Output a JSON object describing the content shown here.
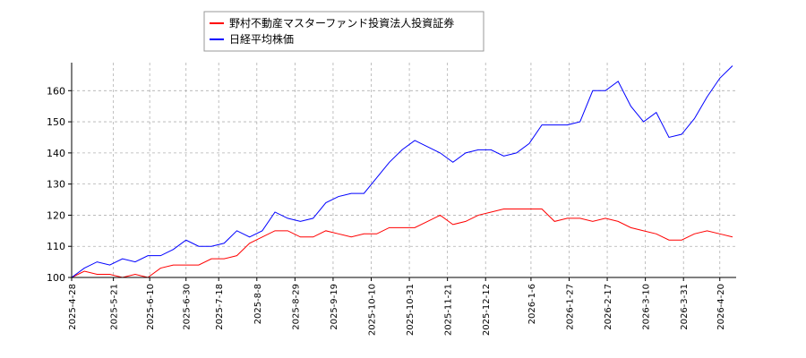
{
  "chart_data": {
    "type": "line",
    "x": [
      "2025-04-28",
      "2025-05-05",
      "2025-05-12",
      "2025-05-19",
      "2025-05-26",
      "2025-06-02",
      "2025-06-09",
      "2025-06-16",
      "2025-06-23",
      "2025-06-30",
      "2025-07-07",
      "2025-07-14",
      "2025-07-21",
      "2025-07-28",
      "2025-08-04",
      "2025-08-11",
      "2025-08-18",
      "2025-08-25",
      "2025-09-01",
      "2025-09-08",
      "2025-09-15",
      "2025-09-22",
      "2025-09-29",
      "2025-10-06",
      "2025-10-13",
      "2025-10-20",
      "2025-10-27",
      "2025-11-03",
      "2025-11-10",
      "2025-11-17",
      "2025-11-24",
      "2025-12-01",
      "2025-12-08",
      "2025-12-15",
      "2025-12-22",
      "2025-12-29",
      "2026-01-05",
      "2026-01-12",
      "2026-01-19",
      "2026-01-26",
      "2026-02-02",
      "2026-02-09",
      "2026-02-16",
      "2026-02-23",
      "2026-03-02",
      "2026-03-09",
      "2026-03-16",
      "2026-03-23",
      "2026-03-30",
      "2026-04-06",
      "2026-04-13",
      "2026-04-20",
      "2026-04-27"
    ],
    "series": [
      {
        "name": "野村不動産マスターファンド投資法人投資証券",
        "color": "#ff0000",
        "values": [
          100,
          102,
          101,
          101,
          100,
          101,
          100,
          103,
          104,
          104,
          104,
          106,
          106,
          107,
          111,
          113,
          115,
          115,
          113,
          113,
          115,
          114,
          113,
          114,
          114,
          116,
          116,
          116,
          118,
          120,
          117,
          118,
          120,
          121,
          122,
          122,
          122,
          122,
          118,
          119,
          119,
          118,
          119,
          118,
          116,
          115,
          114,
          112,
          112,
          114,
          115,
          114,
          113
        ]
      },
      {
        "name": "日経平均株価",
        "color": "#0000ff",
        "values": [
          100,
          103,
          105,
          104,
          106,
          105,
          107,
          107,
          109,
          112,
          110,
          110,
          111,
          115,
          113,
          115,
          121,
          119,
          118,
          119,
          124,
          126,
          127,
          127,
          132,
          137,
          141,
          144,
          142,
          140,
          137,
          140,
          141,
          141,
          139,
          140,
          143,
          149,
          149,
          149,
          150,
          160,
          160,
          163,
          155,
          150,
          153,
          145,
          146,
          151,
          158,
          164,
          168
        ]
      }
    ],
    "xlim": [
      "2025-04-28",
      "2026-04-29"
    ],
    "xticks": [
      {
        "value": "2025-04-28",
        "label": "2025-4-28"
      },
      {
        "value": "2025-05-21",
        "label": "2025-5-21"
      },
      {
        "value": "2025-06-10",
        "label": "2025-6-10"
      },
      {
        "value": "2025-06-30",
        "label": "2025-6-30"
      },
      {
        "value": "2025-07-18",
        "label": "2025-7-18"
      },
      {
        "value": "2025-08-08",
        "label": "2025-8-8"
      },
      {
        "value": "2025-08-29",
        "label": "2025-8-29"
      },
      {
        "value": "2025-09-19",
        "label": "2025-9-19"
      },
      {
        "value": "2025-10-10",
        "label": "2025-10-10"
      },
      {
        "value": "2025-10-31",
        "label": "2025-10-31"
      },
      {
        "value": "2025-11-21",
        "label": "2025-11-21"
      },
      {
        "value": "2025-12-12",
        "label": "2025-12-12"
      },
      {
        "value": "2026-01-06",
        "label": "2026-1-6"
      },
      {
        "value": "2026-01-27",
        "label": "2026-1-27"
      },
      {
        "value": "2026-02-17",
        "label": "2026-2-17"
      },
      {
        "value": "2026-03-10",
        "label": "2026-3-10"
      },
      {
        "value": "2026-03-31",
        "label": "2026-3-31"
      },
      {
        "value": "2026-04-20",
        "label": "2026-4-20"
      }
    ],
    "ylim": [
      100,
      169
    ],
    "yticks": [
      100,
      110,
      120,
      130,
      140,
      150,
      160
    ],
    "grid": true
  }
}
